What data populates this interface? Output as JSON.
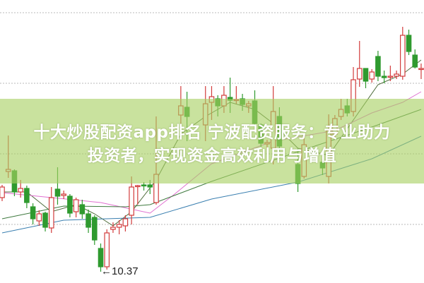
{
  "title": {
    "line1": "十大炒股配资app排名 宁波配资服务：专业助力",
    "line2": "投资者，实现资金高效利用与增值"
  },
  "colors": {
    "up": "#d23c3c",
    "down": "#2f9a2f",
    "band": "#a8d062",
    "grid": "#b8b8b8",
    "ma_short": "#4d6b3a",
    "ma_pink": "#e070d0",
    "ma_green": "#3f7a3f",
    "ma_blue": "#3a7fb0"
  },
  "chart_data": {
    "type": "candlestick",
    "grid": true,
    "annotation": {
      "label": "←10.37",
      "value": 10.37,
      "type": "low-marker"
    },
    "candles_fields": [
      "t",
      "open",
      "close",
      "high",
      "low"
    ],
    "candles": [
      [
        0,
        11.42,
        11.57,
        11.6,
        11.37
      ],
      [
        1,
        11.79,
        11.82,
        12.3,
        11.7
      ],
      [
        2,
        11.8,
        11.5,
        11.82,
        11.44
      ],
      [
        3,
        11.5,
        11.55,
        11.67,
        11.42
      ],
      [
        4,
        11.55,
        11.35,
        11.59,
        11.27
      ],
      [
        5,
        11.29,
        11.12,
        11.34,
        11.04
      ],
      [
        6,
        11.09,
        11.19,
        11.24,
        11.02
      ],
      [
        7,
        11.2,
        11.0,
        11.22,
        10.94
      ],
      [
        8,
        10.99,
        11.42,
        11.57,
        10.92
      ],
      [
        9,
        11.54,
        11.44,
        11.85,
        11.32
      ],
      [
        10,
        11.45,
        11.47,
        11.52,
        11.4
      ],
      [
        11,
        11.44,
        11.2,
        11.47,
        11.14
      ],
      [
        12,
        11.22,
        11.39,
        11.42,
        11.14
      ],
      [
        13,
        11.32,
        11.19,
        11.39,
        11.12
      ],
      [
        14,
        11.19,
        11.0,
        11.25,
        10.92
      ],
      [
        15,
        11.14,
        10.82,
        11.17,
        10.75
      ],
      [
        16,
        10.7,
        10.44,
        10.77,
        10.37
      ],
      [
        17,
        10.44,
        10.92,
        10.97,
        10.4
      ],
      [
        18,
        10.97,
        11.0,
        11.07,
        10.92
      ],
      [
        19,
        11.0,
        11.04,
        11.1,
        10.9
      ],
      [
        20,
        11.02,
        11.12,
        11.17,
        10.94
      ],
      [
        21,
        11.17,
        11.57,
        11.72,
        11.04
      ],
      [
        22,
        11.58,
        11.59,
        11.6,
        11.32
      ],
      [
        23,
        11.6,
        11.59,
        11.64,
        11.52
      ],
      [
        24,
        11.6,
        11.57,
        11.67,
        11.47
      ],
      [
        25,
        11.35,
        11.75,
        12.57,
        11.32
      ],
      [
        29,
        12.59,
        12.72,
        13.0,
        12.32
      ],
      [
        30,
        12.7,
        12.57,
        12.92,
        12.22
      ],
      [
        33,
        12.45,
        12.75,
        13.0,
        12.22
      ],
      [
        34,
        12.77,
        12.85,
        13.0,
        12.52
      ],
      [
        35,
        12.82,
        12.72,
        12.87,
        12.57
      ],
      [
        36,
        12.72,
        12.87,
        13.0,
        12.62
      ],
      [
        37,
        12.84,
        12.8,
        13.12,
        12.62
      ],
      [
        38,
        12.8,
        12.81,
        13.0,
        12.75
      ],
      [
        39,
        12.82,
        12.74,
        12.89,
        12.65
      ],
      [
        40,
        12.72,
        12.75,
        12.79,
        12.62
      ],
      [
        41,
        12.79,
        12.47,
        12.94,
        12.44
      ],
      [
        42,
        12.45,
        12.19,
        12.47,
        12.12
      ],
      [
        43,
        12.18,
        12.2,
        12.24,
        12.12
      ],
      [
        44,
        12.12,
        12.64,
        13.0,
        11.89
      ],
      [
        45,
        12.57,
        12.15,
        12.7,
        12.07
      ],
      [
        48,
        11.89,
        11.62,
        12.12,
        11.5
      ],
      [
        49,
        11.72,
        12.17,
        12.27,
        11.69
      ],
      [
        52,
        11.92,
        11.84,
        11.97,
        11.74
      ],
      [
        53,
        11.72,
        12.37,
        12.6,
        11.62
      ],
      [
        54,
        12.32,
        12.54,
        12.59,
        12.25
      ],
      [
        55,
        12.57,
        12.67,
        12.82,
        12.52
      ],
      [
        56,
        12.72,
        12.62,
        12.82,
        12.57
      ],
      [
        57,
        12.64,
        13.09,
        13.27,
        12.57
      ],
      [
        58,
        13.1,
        13.25,
        13.64,
        12.99
      ],
      [
        59,
        13.25,
        13.07,
        13.25,
        12.97
      ],
      [
        60,
        13.1,
        13.2,
        13.24,
        13.05
      ],
      [
        61,
        13.42,
        13.14,
        13.5,
        13.07
      ],
      [
        62,
        13.14,
        13.12,
        13.22,
        13.04
      ],
      [
        63,
        13.13,
        13.14,
        13.29,
        13.07
      ],
      [
        64,
        13.14,
        13.17,
        13.22,
        13.1
      ],
      [
        65,
        13.14,
        13.72,
        13.84,
        13.09
      ],
      [
        66,
        13.72,
        13.49,
        13.8,
        13.44
      ],
      [
        67,
        13.44,
        13.27,
        13.52,
        13.25
      ],
      [
        68,
        13.25,
        13.25,
        13.32,
        13.1
      ]
    ],
    "moving_averages": [
      {
        "color_key": "ma_short",
        "points": [
          [
            0,
            11.5
          ],
          [
            4,
            11.5
          ],
          [
            8,
            11.22
          ],
          [
            12,
            11.32
          ],
          [
            15,
            11.19
          ],
          [
            18,
            11.02
          ],
          [
            21,
            11.22
          ],
          [
            25,
            11.67
          ],
          [
            29,
            12.32
          ],
          [
            33,
            12.57
          ],
          [
            37,
            12.77
          ],
          [
            41,
            12.67
          ],
          [
            44,
            12.47
          ],
          [
            48,
            12.12
          ],
          [
            53,
            12.02
          ],
          [
            57,
            12.52
          ],
          [
            61,
            13.02
          ],
          [
            65,
            13.17
          ],
          [
            68,
            13.37
          ]
        ]
      },
      {
        "color_key": "ma_pink",
        "points": [
          [
            0,
            11.49
          ],
          [
            16,
            11.35
          ],
          [
            24,
            11.2
          ],
          [
            28,
            11.47
          ],
          [
            34,
            11.9
          ],
          [
            44,
            12.22
          ],
          [
            54,
            12.37
          ],
          [
            60,
            12.62
          ],
          [
            65,
            12.77
          ],
          [
            68,
            12.92
          ]
        ]
      },
      {
        "color_key": "ma_green",
        "points": [
          [
            0,
            11.12
          ],
          [
            10,
            11.3
          ],
          [
            20,
            11.29
          ],
          [
            24,
            11.32
          ],
          [
            34,
            11.65
          ],
          [
            48,
            12.07
          ],
          [
            60,
            12.42
          ],
          [
            68,
            12.67
          ]
        ]
      },
      {
        "color_key": "ma_blue",
        "points": [
          [
            0,
            10.92
          ],
          [
            10,
            11.1
          ],
          [
            24,
            11.14
          ],
          [
            34,
            11.4
          ],
          [
            48,
            11.64
          ],
          [
            60,
            11.97
          ],
          [
            68,
            12.29
          ]
        ]
      }
    ],
    "grid_levels": [
      14.04,
      13.04,
      12.04,
      11.04
    ]
  }
}
